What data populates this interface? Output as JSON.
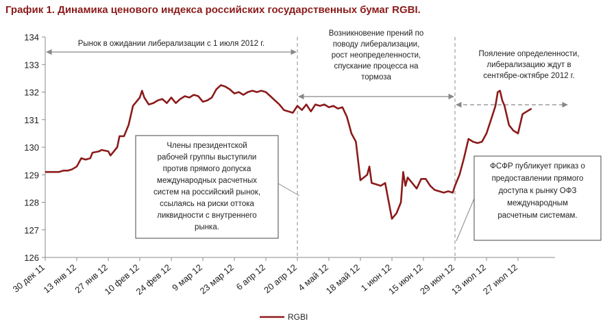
{
  "title": "График 1. Динамика ценового индекса российских государственных бумаг RGBI.",
  "chart_data": {
    "type": "line",
    "ylim": [
      126,
      134
    ],
    "yticks": [
      126,
      127,
      128,
      129,
      130,
      131,
      132,
      133,
      134
    ],
    "xlim": [
      "2011-12-30",
      "2012-08-04"
    ],
    "xtick_dates": [
      "2011-12-30",
      "2012-01-13",
      "2012-01-27",
      "2012-02-10",
      "2012-02-24",
      "2012-03-09",
      "2012-03-23",
      "2012-04-06",
      "2012-04-20",
      "2012-05-04",
      "2012-05-18",
      "2012-06-01",
      "2012-06-15",
      "2012-06-29",
      "2012-07-13",
      "2012-07-27"
    ],
    "xtick_labels": [
      "30 дек 11",
      "13 янв 12",
      "27 янв 12",
      "10 фев 12",
      "24 фев 12",
      "9 мар 12",
      "23 мар 12",
      "6 апр 12",
      "20 апр 12",
      "4 май 12",
      "18 май 12",
      "1 июн 12",
      "15 июн 12",
      "29 июн 12",
      "13 июл 12",
      "27 июл 12"
    ],
    "grid": false,
    "legend": "bottom",
    "series": [
      {
        "name": "RGBI",
        "color": "#8b1a1a",
        "points": [
          [
            "2011-12-30",
            129.1
          ],
          [
            "2012-01-03",
            129.1
          ],
          [
            "2012-01-05",
            129.1
          ],
          [
            "2012-01-07",
            129.15
          ],
          [
            "2012-01-09",
            129.15
          ],
          [
            "2012-01-11",
            129.2
          ],
          [
            "2012-01-13",
            129.3
          ],
          [
            "2012-01-15",
            129.6
          ],
          [
            "2012-01-17",
            129.55
          ],
          [
            "2012-01-19",
            129.6
          ],
          [
            "2012-01-20",
            129.8
          ],
          [
            "2012-01-23",
            129.85
          ],
          [
            "2012-01-24",
            129.9
          ],
          [
            "2012-01-27",
            129.85
          ],
          [
            "2012-01-28",
            129.7
          ],
          [
            "2012-01-31",
            130.0
          ],
          [
            "2012-02-01",
            130.4
          ],
          [
            "2012-02-03",
            130.4
          ],
          [
            "2012-02-05",
            130.8
          ],
          [
            "2012-02-07",
            131.5
          ],
          [
            "2012-02-10",
            131.8
          ],
          [
            "2012-02-11",
            132.05
          ],
          [
            "2012-02-12",
            131.8
          ],
          [
            "2012-02-14",
            131.55
          ],
          [
            "2012-02-16",
            131.6
          ],
          [
            "2012-02-18",
            131.7
          ],
          [
            "2012-02-20",
            131.75
          ],
          [
            "2012-02-22",
            131.6
          ],
          [
            "2012-02-24",
            131.8
          ],
          [
            "2012-02-26",
            131.6
          ],
          [
            "2012-02-28",
            131.75
          ],
          [
            "2012-03-01",
            131.85
          ],
          [
            "2012-03-03",
            131.8
          ],
          [
            "2012-03-05",
            131.9
          ],
          [
            "2012-03-07",
            131.85
          ],
          [
            "2012-03-09",
            131.65
          ],
          [
            "2012-03-11",
            131.7
          ],
          [
            "2012-03-13",
            131.8
          ],
          [
            "2012-03-15",
            132.1
          ],
          [
            "2012-03-17",
            132.25
          ],
          [
            "2012-03-19",
            132.2
          ],
          [
            "2012-03-21",
            132.1
          ],
          [
            "2012-03-23",
            131.95
          ],
          [
            "2012-03-25",
            132.0
          ],
          [
            "2012-03-27",
            131.9
          ],
          [
            "2012-03-29",
            132.0
          ],
          [
            "2012-03-31",
            132.05
          ],
          [
            "2012-04-02",
            132.0
          ],
          [
            "2012-04-04",
            132.05
          ],
          [
            "2012-04-06",
            132.0
          ],
          [
            "2012-04-08",
            131.85
          ],
          [
            "2012-04-10",
            131.7
          ],
          [
            "2012-04-12",
            131.55
          ],
          [
            "2012-04-14",
            131.35
          ],
          [
            "2012-04-16",
            131.3
          ],
          [
            "2012-04-18",
            131.25
          ],
          [
            "2012-04-20",
            131.5
          ],
          [
            "2012-04-22",
            131.35
          ],
          [
            "2012-04-24",
            131.55
          ],
          [
            "2012-04-26",
            131.3
          ],
          [
            "2012-04-28",
            131.55
          ],
          [
            "2012-04-30",
            131.5
          ],
          [
            "2012-05-02",
            131.55
          ],
          [
            "2012-05-04",
            131.45
          ],
          [
            "2012-05-06",
            131.5
          ],
          [
            "2012-05-08",
            131.4
          ],
          [
            "2012-05-10",
            131.45
          ],
          [
            "2012-05-12",
            131.1
          ],
          [
            "2012-05-14",
            130.5
          ],
          [
            "2012-05-16",
            130.2
          ],
          [
            "2012-05-18",
            128.8
          ],
          [
            "2012-05-21",
            129.0
          ],
          [
            "2012-05-22",
            129.3
          ],
          [
            "2012-05-23",
            128.7
          ],
          [
            "2012-05-25",
            128.65
          ],
          [
            "2012-05-27",
            128.6
          ],
          [
            "2012-05-29",
            128.7
          ],
          [
            "2012-06-01",
            127.4
          ],
          [
            "2012-06-03",
            127.6
          ],
          [
            "2012-06-05",
            128.0
          ],
          [
            "2012-06-06",
            129.1
          ],
          [
            "2012-06-07",
            128.6
          ],
          [
            "2012-06-08",
            128.9
          ],
          [
            "2012-06-10",
            128.7
          ],
          [
            "2012-06-12",
            128.5
          ],
          [
            "2012-06-14",
            128.85
          ],
          [
            "2012-06-16",
            128.85
          ],
          [
            "2012-06-18",
            128.6
          ],
          [
            "2012-06-20",
            128.45
          ],
          [
            "2012-06-22",
            128.4
          ],
          [
            "2012-06-24",
            128.35
          ],
          [
            "2012-06-26",
            128.4
          ],
          [
            "2012-06-28",
            128.35
          ],
          [
            "2012-06-29",
            128.6
          ],
          [
            "2012-07-01",
            129.0
          ],
          [
            "2012-07-03",
            129.6
          ],
          [
            "2012-07-05",
            130.3
          ],
          [
            "2012-07-07",
            130.2
          ],
          [
            "2012-07-09",
            130.15
          ],
          [
            "2012-07-11",
            130.2
          ],
          [
            "2012-07-13",
            130.5
          ],
          [
            "2012-07-15",
            131.0
          ],
          [
            "2012-07-17",
            131.5
          ],
          [
            "2012-07-18",
            132.0
          ],
          [
            "2012-07-19",
            132.05
          ],
          [
            "2012-07-20",
            131.7
          ],
          [
            "2012-07-21",
            131.5
          ],
          [
            "2012-07-23",
            130.8
          ],
          [
            "2012-07-25",
            130.6
          ],
          [
            "2012-07-27",
            130.5
          ],
          [
            "2012-07-29",
            131.2
          ],
          [
            "2012-07-31",
            131.3
          ],
          [
            "2012-08-02",
            131.4
          ]
        ]
      }
    ],
    "periods": [
      {
        "from": "2011-12-30",
        "to": "2012-04-20",
        "y": 133.4,
        "label": [
          "Рынок в ожидании либерализации с 1 июля 2012 г."
        ]
      },
      {
        "from": "2012-04-20",
        "to": "2012-06-29",
        "y": 131.9,
        "label": [
          "Возникновение прений по",
          "поводу либерализации,",
          "рост неопределенности,",
          "спускание процесса на",
          "тормоза"
        ]
      },
      {
        "from": "2012-06-29",
        "to": "2012-08-04",
        "y": 131.5,
        "label": [
          "Пояление определенности,",
          "либерализацию ждут в",
          "сентябре-октябре 2012 г."
        ]
      }
    ],
    "dividers": [
      "2012-04-20",
      "2012-06-29"
    ],
    "callouts": [
      {
        "lines": [
          "Члены президентской",
          "рабочей группы выступили",
          "против прямого допуска",
          "международных расчетных",
          "систем на российский рынок,",
          "ссылаясь на риски оттока",
          "ликвидности с внутреннего",
          "рынка."
        ]
      },
      {
        "lines": [
          "ФСФР публикует приказ о",
          "предоставлении прямого",
          "доступа к рынку ОФЗ",
          "международным",
          "расчетным системам."
        ]
      }
    ]
  }
}
